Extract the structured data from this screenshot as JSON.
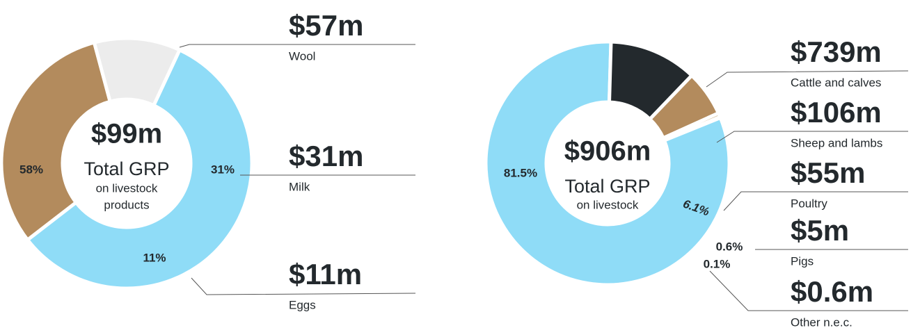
{
  "chart_data": [
    {
      "type": "donut",
      "total": 99,
      "total_label": "$99m",
      "center_title": "Total GRP",
      "center_subtitle": [
        "on livestock",
        "products"
      ],
      "categories": [
        "Wool",
        "Milk",
        "Eggs"
      ],
      "values": [
        57,
        31,
        11
      ],
      "value_labels": [
        "$57m",
        "$31m",
        "$11m"
      ],
      "percent_labels": [
        "58%",
        "31%",
        "11%"
      ],
      "colors": [
        "#8fdcf7",
        "#b38b5d",
        "#ececec"
      ]
    },
    {
      "type": "donut",
      "total": 906,
      "total_label": "$906m",
      "center_title": "Total GRP",
      "center_subtitle": [
        "on livestock"
      ],
      "categories": [
        "Cattle and calves",
        "Sheep and lambs",
        "Poultry",
        "Pigs",
        "Other n.e.c."
      ],
      "values": [
        739,
        106,
        55,
        5,
        0.6
      ],
      "value_labels": [
        "$739m",
        "$106m",
        "$55m",
        "$5m",
        "$0.6m"
      ],
      "percent_labels": [
        "81.5%",
        null,
        "6.1%",
        "0.6%",
        "0.1%"
      ],
      "colors": [
        "#8fdcf7",
        "#23292d",
        "#b38b5d",
        "#d9c3a3",
        "#e4e4e4"
      ]
    }
  ]
}
